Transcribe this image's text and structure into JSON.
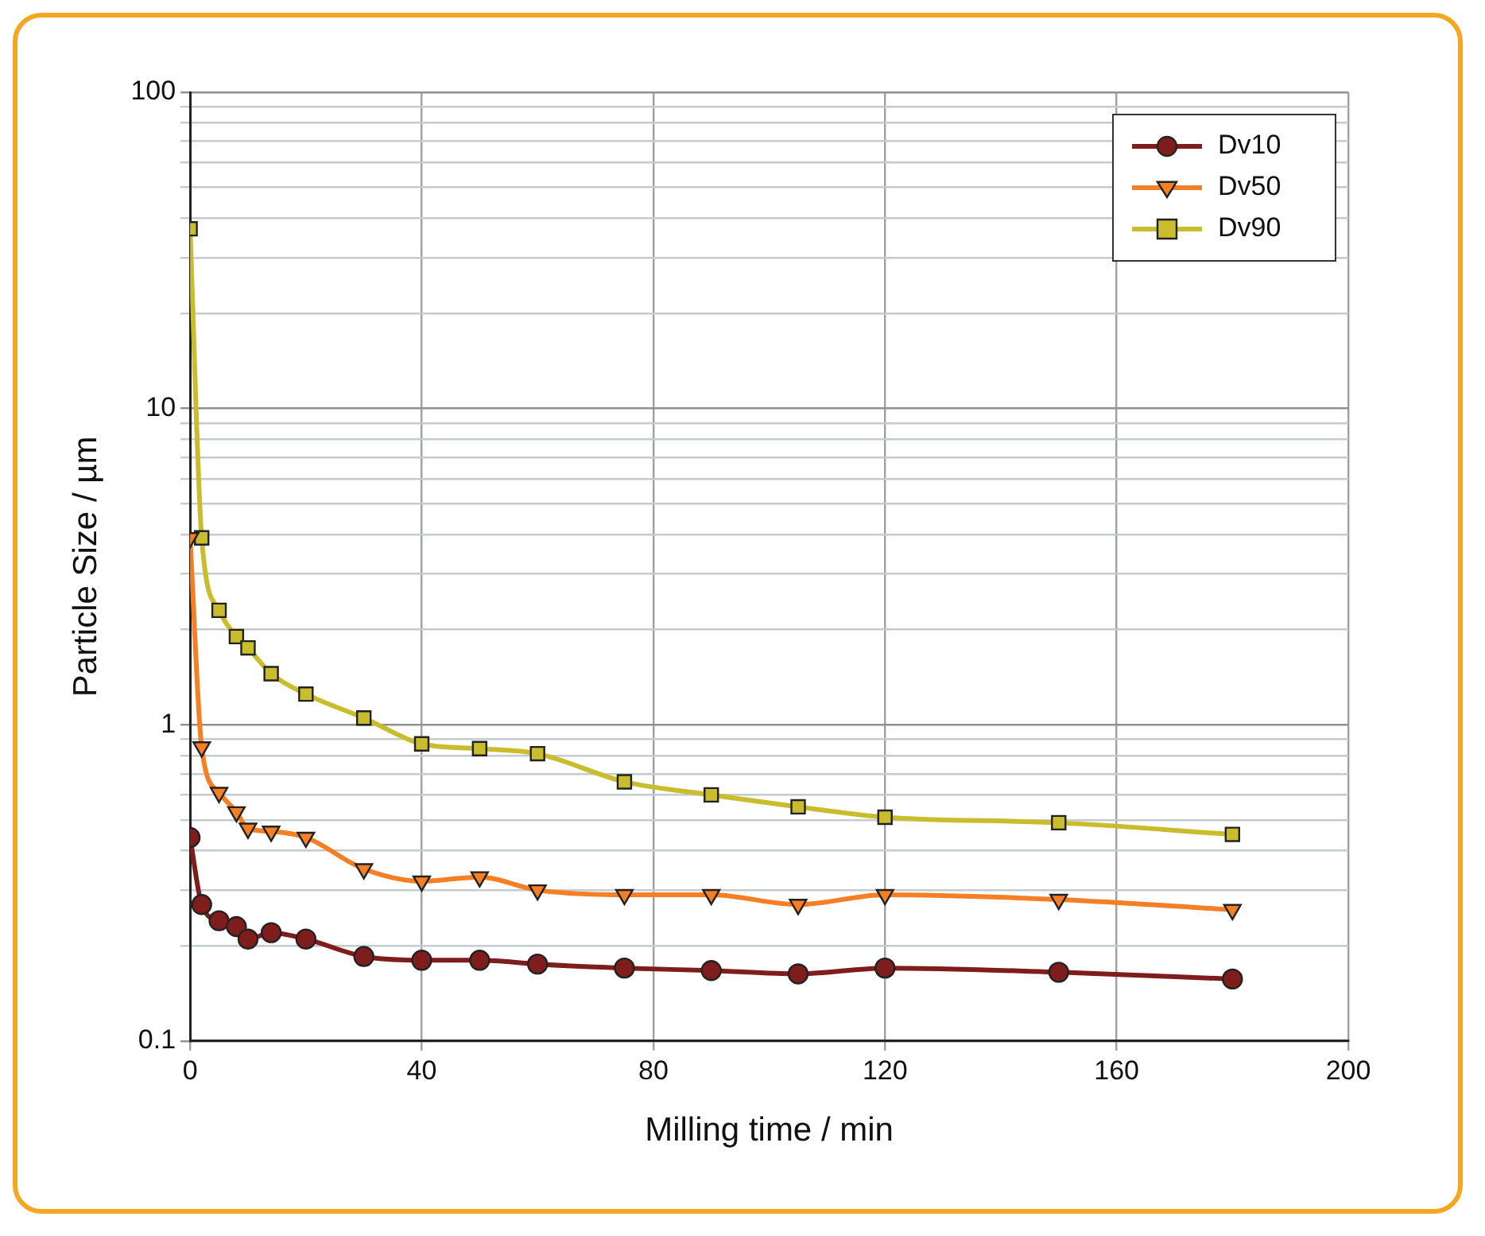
{
  "chart_data": {
    "type": "line",
    "xlabel": "Milling time / min",
    "ylabel": "Particle Size / µm",
    "xlim": [
      0,
      200
    ],
    "xticks": [
      0,
      40,
      80,
      120,
      160,
      200
    ],
    "ylim": [
      0.1,
      100
    ],
    "log": "y",
    "yticks": [
      0.1,
      {
        "value": 0.2,
        "label": null
      },
      {
        "value": 0.3,
        "label": null
      },
      {
        "value": 0.4,
        "label": null
      },
      {
        "value": 0.5,
        "label": null
      },
      {
        "value": 0.6,
        "label": null
      },
      {
        "value": 0.7,
        "label": null
      },
      {
        "value": 0.8,
        "label": null
      },
      {
        "value": 0.9,
        "label": null
      },
      1,
      {
        "value": 2,
        "label": null
      },
      {
        "value": 3,
        "label": null
      },
      {
        "value": 4,
        "label": null
      },
      {
        "value": 5,
        "label": null
      },
      {
        "value": 6,
        "label": null
      },
      {
        "value": 7,
        "label": null
      },
      {
        "value": 8,
        "label": null
      },
      {
        "value": 9,
        "label": null
      },
      10,
      {
        "value": 20,
        "label": null
      },
      {
        "value": 30,
        "label": null
      },
      {
        "value": 40,
        "label": null
      },
      {
        "value": 50,
        "label": null
      },
      {
        "value": 60,
        "label": null
      },
      {
        "value": 70,
        "label": null
      },
      {
        "value": 80,
        "label": null
      },
      {
        "value": 90,
        "label": null
      },
      100
    ],
    "grid": true,
    "legend": "top right",
    "line_style": "solid",
    "x": [
      0,
      2,
      5,
      8,
      10,
      14,
      20,
      30,
      40,
      50,
      60,
      75,
      90,
      105,
      120,
      150,
      180
    ],
    "series": [
      {
        "name": "Dv10",
        "color": "#7f1d1d",
        "marker": "circle",
        "values": [
          0.44,
          0.27,
          0.24,
          0.23,
          0.21,
          0.22,
          0.21,
          0.185,
          0.18,
          0.18,
          0.175,
          0.17,
          0.167,
          0.163,
          0.17,
          0.165,
          0.157
        ]
      },
      {
        "name": "Dv50",
        "color": "#f47f24",
        "marker": "triangle",
        "values": [
          3.9,
          0.85,
          0.61,
          0.53,
          0.47,
          0.46,
          0.44,
          0.35,
          0.32,
          0.33,
          0.3,
          0.29,
          0.29,
          0.27,
          0.29,
          0.28,
          0.26
        ]
      },
      {
        "name": "Dv90",
        "color": "#c9bd2d",
        "marker": "square",
        "values": [
          37,
          3.9,
          2.3,
          1.9,
          1.75,
          1.45,
          1.25,
          1.05,
          0.87,
          0.84,
          0.81,
          0.66,
          0.6,
          0.55,
          0.51,
          0.49,
          0.45
        ]
      }
    ]
  }
}
